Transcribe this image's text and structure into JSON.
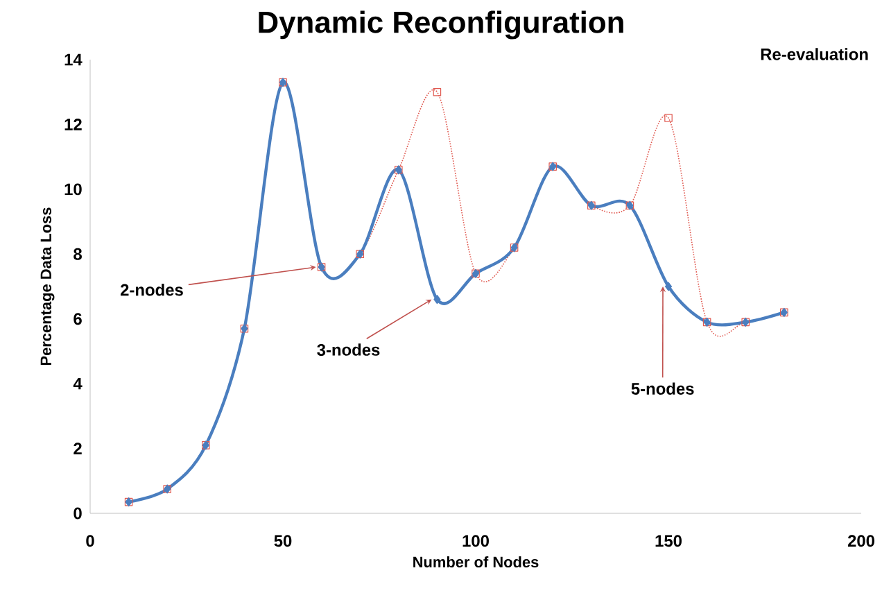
{
  "chart_data": {
    "type": "line",
    "title": "Dynamic Reconfiguration",
    "xlabel": "Number of Nodes",
    "ylabel": "Percentage Data Loss",
    "x": [
      10,
      20,
      30,
      40,
      50,
      60,
      70,
      80,
      90,
      100,
      110,
      120,
      130,
      140,
      150,
      160,
      170,
      180
    ],
    "series": [
      {
        "color": "#e0584f",
        "line_style": "dotted",
        "marker": "square",
        "values": [
          0.35,
          0.75,
          2.1,
          5.7,
          13.3,
          7.6,
          8.0,
          10.6,
          13.0,
          7.4,
          8.2,
          10.7,
          9.5,
          9.5,
          12.2,
          5.9,
          5.9,
          6.2
        ]
      },
      {
        "color": "#4a7ebf",
        "line_style": "solid",
        "marker": "diamond",
        "values": [
          0.35,
          0.75,
          2.1,
          5.7,
          13.3,
          7.6,
          8.0,
          10.6,
          6.6,
          7.4,
          8.2,
          10.7,
          9.5,
          9.5,
          7.0,
          5.9,
          5.9,
          6.2
        ]
      }
    ],
    "xlim": [
      0,
      200
    ],
    "xticks": [
      0,
      50,
      100,
      150,
      200
    ],
    "ylim": [
      0,
      14
    ],
    "yticks": [
      0,
      2,
      4,
      6,
      8,
      10,
      12,
      14
    ],
    "annotations": [
      "Re-evaluation",
      {
        "text": "2-nodes",
        "x": 60,
        "y": 7.6
      },
      {
        "text": "3-nodes",
        "x": 90,
        "y": 6.6
      },
      {
        "text": "5-nodes",
        "x": 150,
        "y": 7.0
      }
    ]
  }
}
